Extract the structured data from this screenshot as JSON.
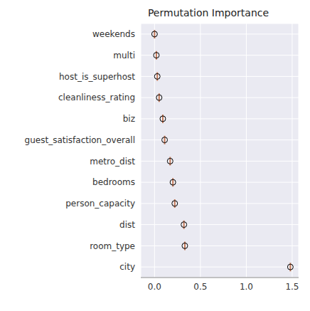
{
  "chart_data": {
    "type": "box",
    "title": "Permutation Importance",
    "orientation": "horizontal",
    "categories": [
      "city",
      "room_type",
      "dist",
      "person_capacity",
      "bedrooms",
      "metro_dist",
      "guest_satisfaction_overall",
      "biz",
      "cleanliness_rating",
      "host_is_superhost",
      "multi",
      "weekends"
    ],
    "values": [
      1.48,
      0.33,
      0.32,
      0.22,
      0.2,
      0.17,
      0.11,
      0.09,
      0.05,
      0.03,
      0.02,
      0.0
    ],
    "color": "#c47a5a",
    "marker": "circle",
    "xlim": [
      -0.15,
      1.57
    ],
    "xticks": [
      {
        "value": 0,
        "label": "0.0"
      },
      0.5,
      {
        "value": 1,
        "label": "1.0"
      },
      1.5
    ],
    "grid": true
  }
}
